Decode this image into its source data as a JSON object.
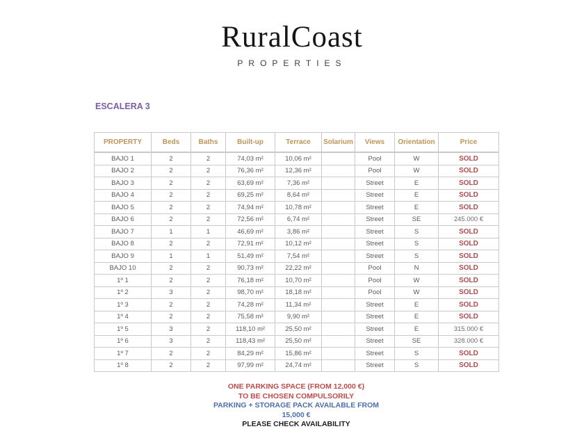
{
  "brand": {
    "name": "RuralCoast",
    "tagline": "PROPERTIES"
  },
  "section_title": "ESCALERA 3",
  "table": {
    "columns": [
      "PROPERTY",
      "Beds",
      "Baths",
      "Built-up",
      "Terrace",
      "Solarium",
      "Views",
      "Orientation",
      "Price"
    ],
    "rows": [
      [
        "BAJO 1",
        "2",
        "2",
        "74,03 m²",
        "10,06 m²",
        "",
        "Pool",
        "W",
        "SOLD"
      ],
      [
        "BAJO 2",
        "2",
        "2",
        "76,36 m²",
        "12,36 m²",
        "",
        "Pool",
        "W",
        "SOLD"
      ],
      [
        "BAJO 3",
        "2",
        "2",
        "63,69 m²",
        "7,36 m²",
        "",
        "Street",
        "E",
        "SOLD"
      ],
      [
        "BAJO 4",
        "2",
        "2",
        "69,25 m²",
        "8,64 m²",
        "",
        "Street",
        "E",
        "SOLD"
      ],
      [
        "BAJO 5",
        "2",
        "2",
        "74,94 m²",
        "10,78 m²",
        "",
        "Street",
        "E",
        "SOLD"
      ],
      [
        "BAJO 6",
        "2",
        "2",
        "72,56 m²",
        "6,74 m²",
        "",
        "Street",
        "SE",
        "245.000 €"
      ],
      [
        "BAJO 7",
        "1",
        "1",
        "46,69 m²",
        "3,86 m²",
        "",
        "Street",
        "S",
        "SOLD"
      ],
      [
        "BAJO 8",
        "2",
        "2",
        "72,91 m²",
        "10,12 m²",
        "",
        "Street",
        "S",
        "SOLD"
      ],
      [
        "BAJO 9",
        "1",
        "1",
        "51,49 m²",
        "7,54 m²",
        "",
        "Street",
        "S",
        "SOLD"
      ],
      [
        "BAJO 10",
        "2",
        "2",
        "90,73 m²",
        "22,22 m²",
        "",
        "Pool",
        "N",
        "SOLD"
      ],
      [
        "1º 1",
        "2",
        "2",
        "76,18 m²",
        "10,70 m²",
        "",
        "Pool",
        "W",
        "SOLD"
      ],
      [
        "1º 2",
        "3",
        "2",
        "98,70 m²",
        "18,18 m²",
        "",
        "Pool",
        "W",
        "SOLD"
      ],
      [
        "1º 3",
        "2",
        "2",
        "74,28 m²",
        "11,34 m²",
        "",
        "Street",
        "E",
        "SOLD"
      ],
      [
        "1º 4",
        "2",
        "2",
        "75,58 m²",
        "9,90 m²",
        "",
        "Street",
        "E",
        "SOLD"
      ],
      [
        "1º 5",
        "3",
        "2",
        "118,10 m²",
        "25,50 m²",
        "",
        "Street",
        "E",
        "315.000 €"
      ],
      [
        "1º 6",
        "3",
        "2",
        "118,43 m²",
        "25,50 m²",
        "",
        "Street",
        "SE",
        "328.000 €"
      ],
      [
        "1º 7",
        "2",
        "2",
        "84,29 m²",
        "15,86 m²",
        "",
        "Street",
        "S",
        "SOLD"
      ],
      [
        "1º 8",
        "2",
        "2",
        "97,99 m²",
        "24,74 m²",
        "",
        "Street",
        "S",
        "SOLD"
      ]
    ]
  },
  "notes": {
    "lines": [
      {
        "text": "ONE PARKING SPACE (FROM 12,000 €)",
        "color_role": "red"
      },
      {
        "text": "TO BE CHOSEN COMPULSORILY",
        "color_role": "red"
      },
      {
        "text": "PARKING + STORAGE PACK AVAILABLE FROM",
        "color_role": "blue"
      },
      {
        "text": "15,000 €",
        "color_role": "blue"
      },
      {
        "text": "PLEASE CHECK AVAILABILITY",
        "color_role": "dark"
      }
    ]
  },
  "colors": {
    "title_purple": "#7b5ca6",
    "header_gold": "#bf9456",
    "cell_text": "#595959",
    "sold_red": "#b04a4e",
    "price_text": "#6b6b6b",
    "note_red": "#c04a4a",
    "note_blue": "#4a6fae",
    "note_dark": "#1f1f1f",
    "grid_line": "#c9c9c9"
  }
}
